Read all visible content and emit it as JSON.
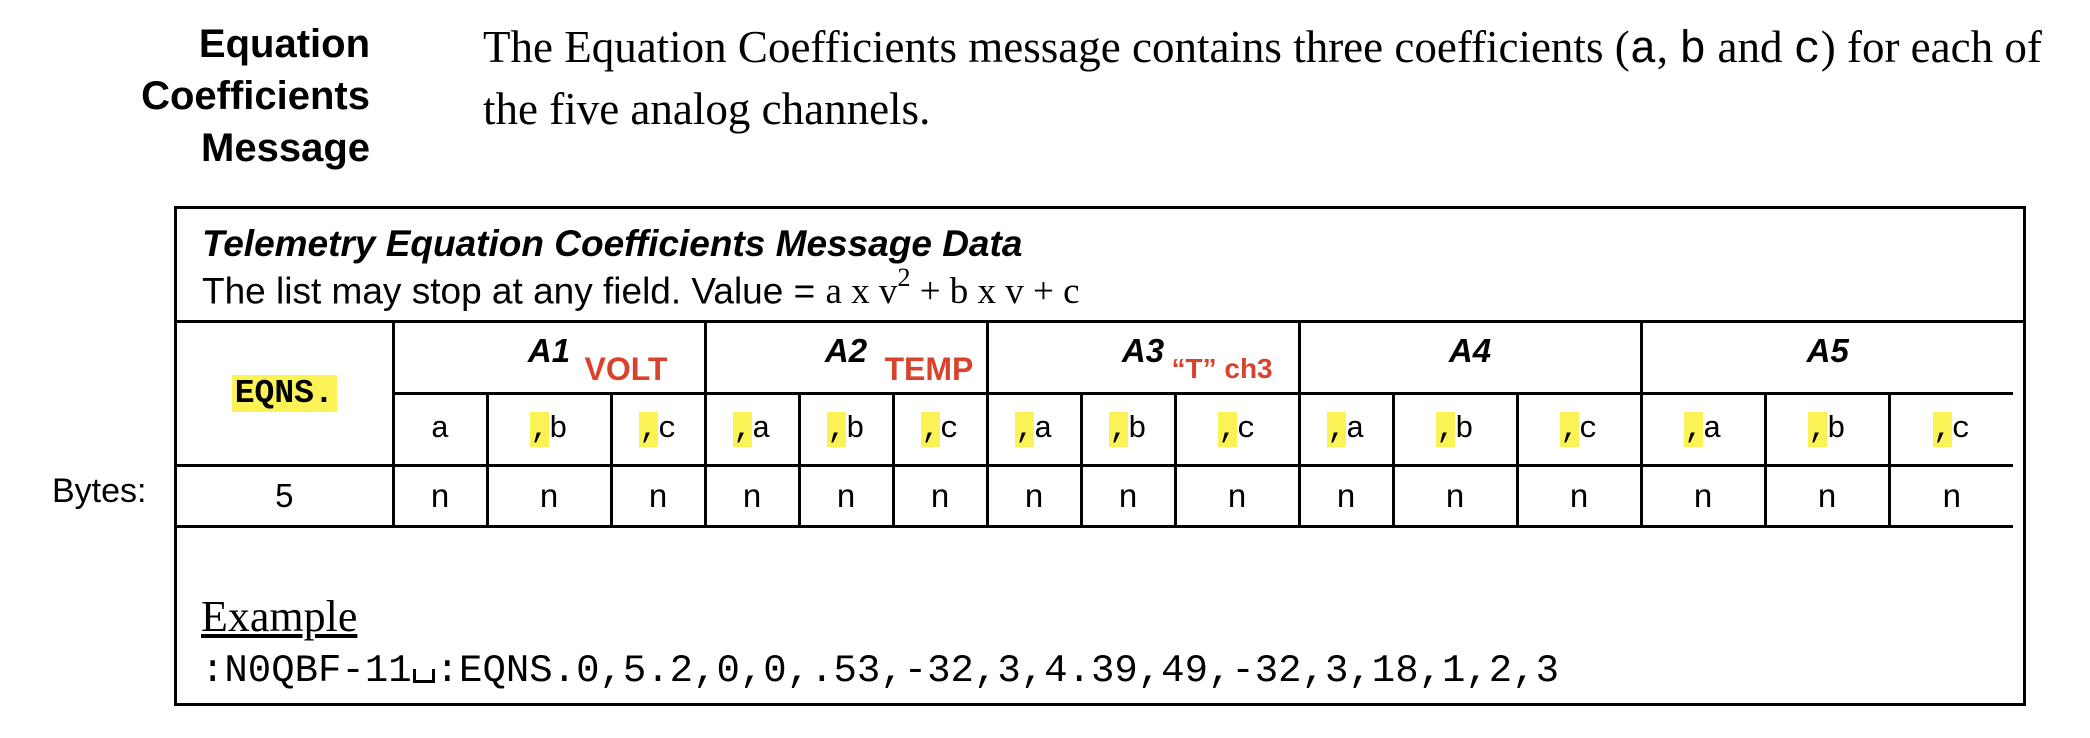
{
  "section_heading": [
    "Equation",
    "Coefficients",
    "Message"
  ],
  "intro": {
    "text_before": "The Equation Coefficients message contains three coefficients (",
    "coef_a": "a",
    "sep1": ", ",
    "coef_b": "b",
    "sep2": " and ",
    "coef_c": "c",
    "text_after": ") for each of the five analog channels."
  },
  "table": {
    "title": "Telemetry Equation Coefficients Message Data",
    "subtitle": "The list may stop at any field.  Value = ",
    "formula": {
      "part1": "a x v",
      "exp": "2",
      "part2": " + b x v  + c"
    },
    "identifier": "EQNS.",
    "channels": [
      {
        "name": "A1",
        "tag": "VOLT"
      },
      {
        "name": "A2",
        "tag": "TEMP"
      },
      {
        "name": "A3",
        "tag": "“T” ch3"
      },
      {
        "name": "A4",
        "tag": ""
      },
      {
        "name": "A5",
        "tag": ""
      }
    ],
    "fields": [
      "a",
      ",b",
      ",c",
      ",a",
      ",b",
      ",c",
      ",a",
      ",b",
      ",c",
      ",a",
      ",b",
      ",c",
      ",a",
      ",b",
      ",c"
    ],
    "bytes_label": "Bytes:",
    "bytes_first": "5",
    "bytes": [
      "n",
      "n",
      "n",
      "n",
      "n",
      "n",
      "n",
      "n",
      "n",
      "n",
      "n",
      "n",
      "n",
      "n",
      "n"
    ]
  },
  "example": {
    "label": "Example",
    "prefix": ":N0QBF-11",
    "body": ":EQNS.0,5.2,0,0,.53,-32,3,4.39,49,-32,3,18,1,2,3"
  },
  "colors": {
    "highlight": "#fbf255",
    "annotation": "#d9432d"
  }
}
